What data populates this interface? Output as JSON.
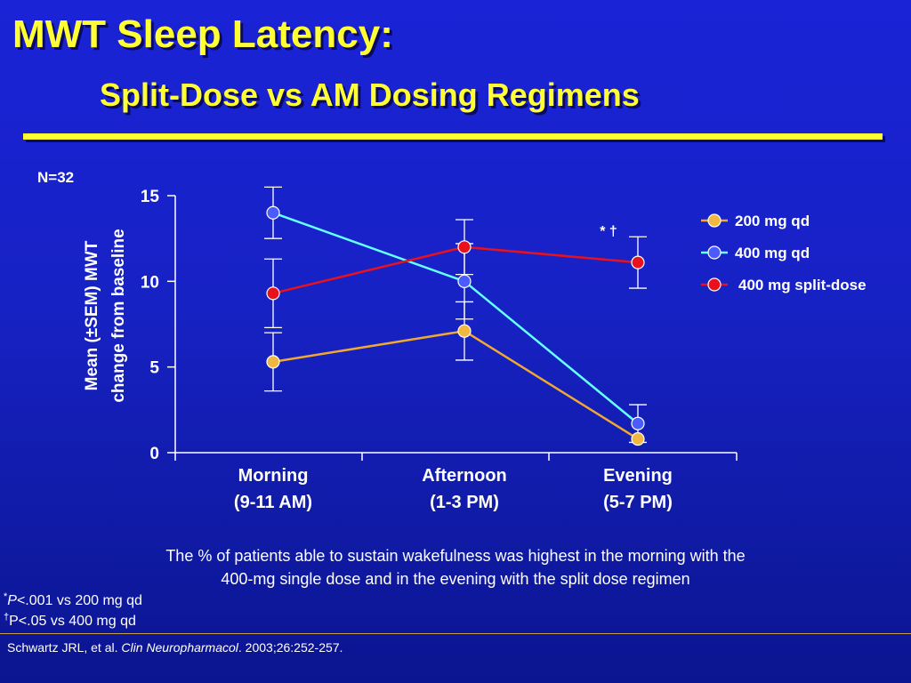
{
  "title": "MWT Sleep Latency:",
  "subtitle": "Split-Dose vs AM Dosing Regimens",
  "caption_line1": "The % of patients able to sustain wakefulness was highest in the morning with the",
  "caption_line2": "400-mg single dose and in the evening with the split dose regimen",
  "footnote1": {
    "mark": "*",
    "p": "P",
    "text": "<.001 vs 200 mg qd"
  },
  "footnote2": {
    "mark": "†",
    "text": "P<.05 vs 400 mg qd"
  },
  "reference": {
    "authors": "Schwartz JRL, et al. ",
    "journal": "Clin Neuropharmacol",
    "details": ". 2003;26:252-257."
  },
  "colors": {
    "yellow": "#ffff33",
    "orange": "#f0a830",
    "cyan": "#66ffff",
    "red": "#e8121c",
    "blue_marker": "#4a5cff"
  },
  "chart_data": {
    "type": "line",
    "annotation_n": "N=32",
    "ylabel_line1": "Mean (±SEM) MWT",
    "ylabel_line2": "change from baseline",
    "ylim": [
      0,
      15
    ],
    "yticks": [
      0,
      5,
      10,
      15
    ],
    "categories": [
      {
        "line1": "Morning",
        "line2": "(9-11 AM)"
      },
      {
        "line1": "Afternoon",
        "line2": "(1-3 PM)"
      },
      {
        "line1": "Evening",
        "line2": "(5-7 PM)"
      }
    ],
    "series": [
      {
        "name": "200 mg qd",
        "color": "#f0a830",
        "marker": "#f0b840",
        "values": [
          5.3,
          7.1,
          0.8
        ],
        "err": [
          1.7,
          1.7,
          0
        ]
      },
      {
        "name": "400 mg qd",
        "color": "#66ffff",
        "marker": "#4a5cff",
        "values": [
          14.0,
          10.0,
          1.7
        ],
        "err": [
          1.5,
          2.2,
          1.1
        ]
      },
      {
        "name": "400 mg split-dose",
        "color": "#e8121c",
        "marker": "#e8121c",
        "values": [
          9.3,
          12.0,
          11.1
        ],
        "err": [
          2.0,
          1.6,
          1.5
        ]
      }
    ],
    "significance": {
      "label": "* †",
      "category_index": 2
    }
  }
}
